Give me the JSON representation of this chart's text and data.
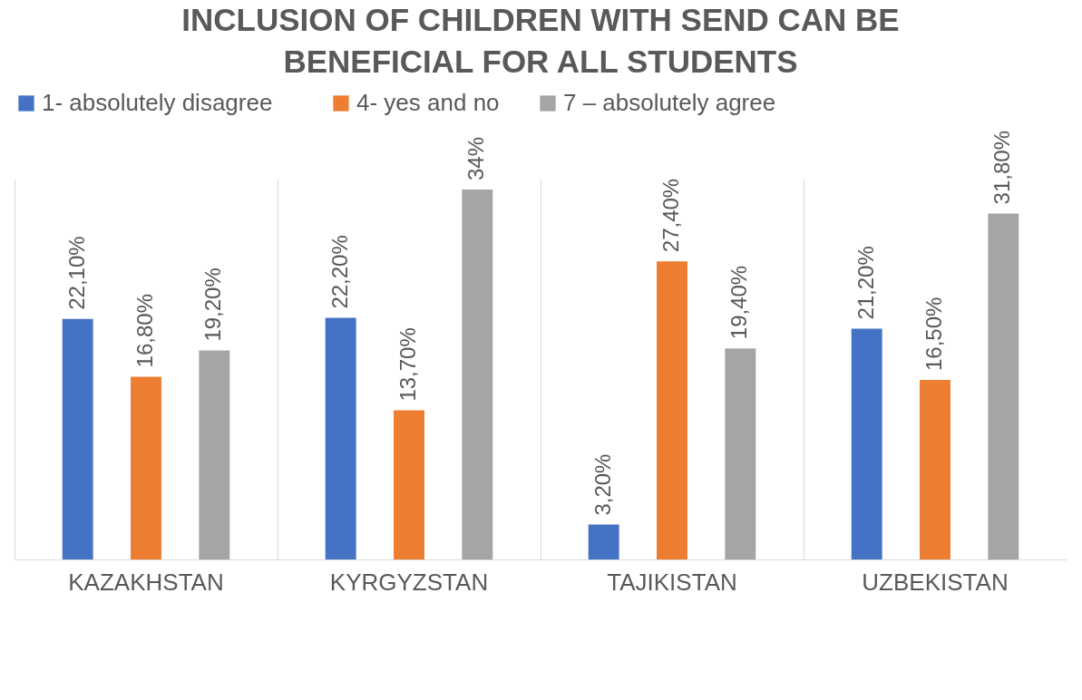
{
  "chart_data": {
    "type": "bar",
    "title": [
      "INCLUSION OF CHILDREN WITH SEND CAN BE",
      "BENEFICIAL FOR ALL STUDENTS"
    ],
    "categories": [
      "KAZAKHSTAN",
      "KYRGYZSTAN",
      "TAJIKISTAN",
      "UZBEKISTAN"
    ],
    "series": [
      {
        "name": "1-    absolutely disagree",
        "color": "#4472c4",
        "values": [
          22.1,
          22.2,
          3.2,
          21.2
        ],
        "value_labels": [
          "22,10%",
          "22,20%",
          "3,20%",
          "21,20%"
        ]
      },
      {
        "name": "4- yes and no",
        "color": "#ed7d31",
        "values": [
          16.8,
          13.7,
          27.4,
          16.5
        ],
        "value_labels": [
          "16,80%",
          "13,70%",
          "27,40%",
          "16,50%"
        ]
      },
      {
        "name": "7 – absolutely agree",
        "color": "#a5a5a5",
        "values": [
          19.2,
          34,
          19.4,
          31.8
        ],
        "value_labels": [
          "19,20%",
          "34%",
          "19,40%",
          "31,80%"
        ]
      }
    ],
    "grid": "x",
    "legend": "top"
  }
}
